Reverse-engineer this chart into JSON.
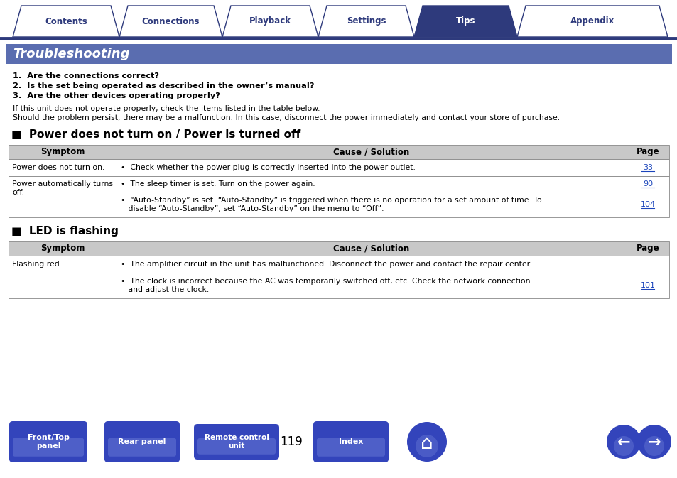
{
  "bg_color": "#ffffff",
  "tab_labels": [
    "Contents",
    "Connections",
    "Playback",
    "Settings",
    "Tips",
    "Appendix"
  ],
  "tab_active_idx": 4,
  "tab_color_active": "#2e3a7c",
  "tab_color_inactive": "#ffffff",
  "tab_text_active": "#ffffff",
  "tab_text_inactive": "#2e3a7c",
  "tab_border_color": "#2e3a7c",
  "section_header_bg": "#5a6db0",
  "section_header_text": "#ffffff",
  "section_header_title": "Troubleshooting",
  "intro_bold_lines": [
    "1.  Are the connections correct?",
    "2.  Is the set being operated as described in the owner’s manual?",
    "3.  Are the other devices operating properly?"
  ],
  "intro_normal_lines": [
    "If this unit does not operate properly, check the items listed in the table below.",
    "Should the problem persist, there may be a malfunction. In this case, disconnect the power immediately and contact your store of purchase."
  ],
  "table1_title": "■  Power does not turn on / Power is turned off",
  "table1_header": [
    "Symptom",
    "Cause / Solution",
    "Page"
  ],
  "table1_header_bg": "#c8c8c8",
  "table1_cause_row0": "•  Check whether the power plug is correctly inserted into the power outlet.",
  "table1_page_row0": "33",
  "table1_symptom_row12": "Power automatically turns\noff.",
  "table1_cause_row1": "•  The sleep timer is set. Turn on the power again.",
  "table1_page_row1": "90",
  "table1_cause_row2_line1": "•  “Auto-Standby” is set. “Auto-Standby” is triggered when there is no operation for a set amount of time. To",
  "table1_cause_row2_line2": "   disable “Auto-Standby”, set “Auto-Standby” on the menu to “Off”.",
  "table1_page_row2": "104",
  "table2_title": "■  LED is flashing",
  "table2_header": [
    "Symptom",
    "Cause / Solution",
    "Page"
  ],
  "table2_symptom_row01": "Flashing red.",
  "table2_cause_row0": "•  The amplifier circuit in the unit has malfunctioned. Disconnect the power and contact the repair center.",
  "table2_page_row0": "–",
  "table2_cause_row1_line1": "•  The clock is incorrect because the AC was temporarily switched off, etc. Check the network connection",
  "table2_cause_row1_line2": "   and adjust the clock.",
  "table2_page_row1": "101",
  "table_border_color": "#888888",
  "table_text_color": "#000000",
  "page_number": "119",
  "nav_button_color": "#3344bb",
  "nav_button_text_color": "#ffffff",
  "link_color": "#1a44bb",
  "nav_btn1": "Front/Top\npanel",
  "nav_btn2": "Rear panel",
  "nav_btn3": "Remote control\nunit",
  "nav_btn4": "Index"
}
